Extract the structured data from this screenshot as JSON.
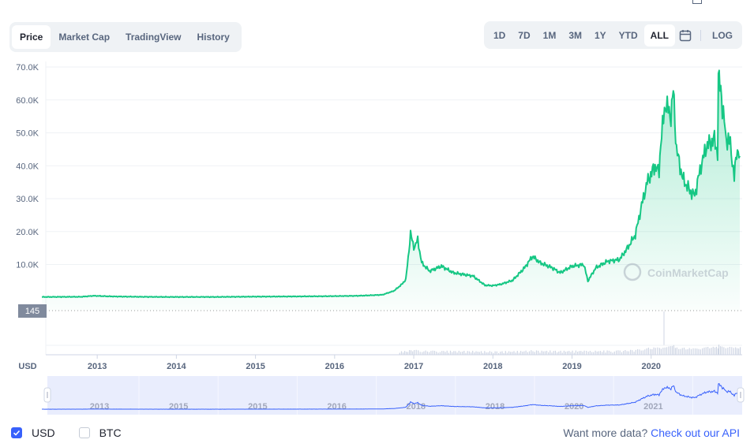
{
  "tabs": [
    "Price",
    "Market Cap",
    "TradingView",
    "History"
  ],
  "active_tab": "Price",
  "ranges": [
    "1D",
    "7D",
    "1M",
    "3M",
    "1Y",
    "YTD",
    "ALL"
  ],
  "active_range": "ALL",
  "log_label": "LOG",
  "currency_axis_label": "USD",
  "current_price_tag": "145",
  "watermark": "CoinMarketCap",
  "footer": {
    "usd_label": "USD",
    "btc_label": "BTC",
    "api_prompt": "Want more data?",
    "api_link": "Check out our API"
  },
  "colors": {
    "line": "#16c784",
    "navigator_line": "#3861fb",
    "accent": "#3861fb"
  },
  "chart_data": {
    "type": "area",
    "series": [
      {
        "values": [
          [
            2012.3,
            145
          ],
          [
            2012.8,
            200
          ],
          [
            2012.95,
            500
          ],
          [
            2013.2,
            300
          ],
          [
            2013.5,
            200
          ],
          [
            2013.9,
            150
          ],
          [
            2014.5,
            150
          ],
          [
            2015.0,
            250
          ],
          [
            2015.5,
            300
          ],
          [
            2016.0,
            400
          ],
          [
            2016.3,
            500
          ],
          [
            2016.6,
            800
          ],
          [
            2016.75,
            2000
          ],
          [
            2016.85,
            4000
          ],
          [
            2016.9,
            5500
          ],
          [
            2016.93,
            12000
          ],
          [
            2016.96,
            19500
          ],
          [
            2017.0,
            15000
          ],
          [
            2017.05,
            17500
          ],
          [
            2017.1,
            10500
          ],
          [
            2017.2,
            8000
          ],
          [
            2017.35,
            9500
          ],
          [
            2017.5,
            7500
          ],
          [
            2017.75,
            6500
          ],
          [
            2017.9,
            3700
          ],
          [
            2018.0,
            3600
          ],
          [
            2018.1,
            4000
          ],
          [
            2018.25,
            5200
          ],
          [
            2018.4,
            9000
          ],
          [
            2018.5,
            12500
          ],
          [
            2018.6,
            10500
          ],
          [
            2018.75,
            9000
          ],
          [
            2018.85,
            7500
          ],
          [
            2019.0,
            9500
          ],
          [
            2019.15,
            10000
          ],
          [
            2019.2,
            5000
          ],
          [
            2019.3,
            9000
          ],
          [
            2019.45,
            11000
          ],
          [
            2019.6,
            11500
          ],
          [
            2019.7,
            15000
          ],
          [
            2019.8,
            19000
          ],
          [
            2019.88,
            28000
          ],
          [
            2019.95,
            35000
          ],
          [
            2020.05,
            40000
          ],
          [
            2020.1,
            38000
          ],
          [
            2020.12,
            47000
          ],
          [
            2020.18,
            59000
          ],
          [
            2020.25,
            55000
          ],
          [
            2020.28,
            63000
          ],
          [
            2020.32,
            45000
          ],
          [
            2020.4,
            36000
          ],
          [
            2020.5,
            32000
          ],
          [
            2020.55,
            31000
          ],
          [
            2020.63,
            40000
          ],
          [
            2020.7,
            46000
          ],
          [
            2020.8,
            48000
          ],
          [
            2020.84,
            44000
          ],
          [
            2020.85,
            66000
          ],
          [
            2020.88,
            64000
          ],
          [
            2020.9,
            58000
          ],
          [
            2020.95,
            48000
          ],
          [
            2021.0,
            47000
          ],
          [
            2021.05,
            36000
          ],
          [
            2021.08,
            45000
          ],
          [
            2021.12,
            43000
          ]
        ]
      }
    ],
    "yticks": [
      "70.0K",
      "60.0K",
      "50.0K",
      "40.0K",
      "30.0K",
      "20.0K",
      "10.0K"
    ],
    "ylim": [
      -4000,
      70000
    ],
    "xlim": [
      2012.35,
      2021.15
    ],
    "xticks": [
      "2013",
      "2014",
      "2015",
      "2016",
      "2017",
      "2018",
      "2019",
      "2020"
    ],
    "navigator_ticks": [
      "2013",
      "2015",
      "2015",
      "2016",
      "2018",
      "2018",
      "2020",
      "2021"
    ]
  }
}
